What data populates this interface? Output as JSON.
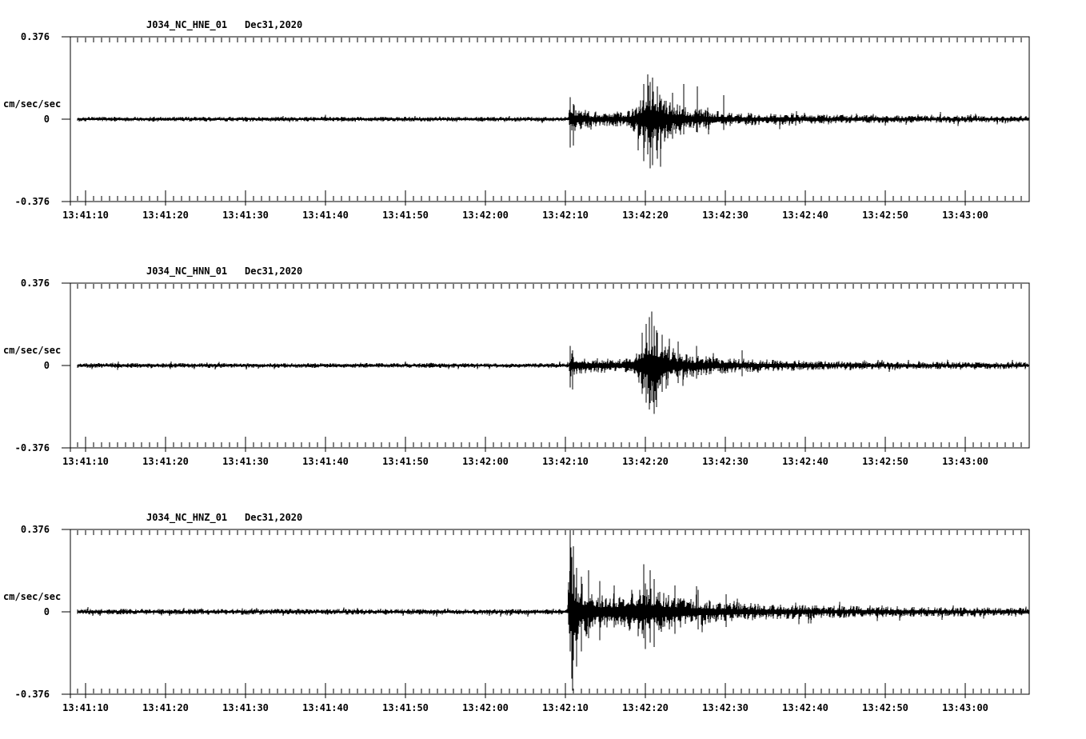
{
  "page": {
    "background_color": "#ffffff",
    "trace_color": "#000000"
  },
  "chart_data": {
    "type": "line",
    "subtype": "seismogram",
    "station": "J034",
    "network": "NC",
    "date_label": "Dec31,2020",
    "ylabel": "cm/sec/sec",
    "ylim": [
      -0.376,
      0.376
    ],
    "y_tick_labels": [
      "0.376",
      "0",
      "-0.376"
    ],
    "x_tick_labels": [
      "13:41:10",
      "13:41:20",
      "13:41:30",
      "13:41:40",
      "13:41:50",
      "13:42:00",
      "13:42:10",
      "13:42:20",
      "13:42:30",
      "13:42:40",
      "13:42:50",
      "13:43:00"
    ],
    "x_tick_interval_seconds": 10,
    "event_onset_label": "13:42:10",
    "panels": [
      {
        "title": "J034_NC_HNE_01",
        "date_label": "Dec31,2020",
        "channel": "HNE",
        "seed": 101,
        "envelope": [
          [
            0,
            0.011
          ],
          [
            62.3,
            0.011
          ],
          [
            62.45,
            0.085
          ],
          [
            63.2,
            0.058
          ],
          [
            64.5,
            0.042
          ],
          [
            66,
            0.034
          ],
          [
            69,
            0.036
          ],
          [
            70.3,
            0.05
          ],
          [
            71,
            0.08
          ],
          [
            71.8,
            0.13
          ],
          [
            72.4,
            0.175
          ],
          [
            73.2,
            0.155
          ],
          [
            74,
            0.115
          ],
          [
            75,
            0.08
          ],
          [
            76.5,
            0.06
          ],
          [
            78,
            0.05
          ],
          [
            80,
            0.04
          ],
          [
            83,
            0.032
          ],
          [
            86,
            0.028
          ],
          [
            90,
            0.025
          ],
          [
            95,
            0.021
          ],
          [
            100,
            0.019
          ],
          [
            108,
            0.017
          ],
          [
            120,
            0.016
          ]
        ],
        "spikes": [
          [
            62.5,
            0.1,
            0.13
          ],
          [
            62.9,
            0.07,
            0.12
          ],
          [
            71.7,
            0.16,
            0.12
          ],
          [
            72.2,
            0.205,
            0.16
          ],
          [
            72.5,
            0.17,
            0.225
          ],
          [
            72.8,
            0.19,
            0.21
          ],
          [
            73.4,
            0.15,
            0.18
          ],
          [
            75.3,
            0.12,
            0.09
          ],
          [
            76.7,
            0.16,
            0.07
          ],
          [
            78.4,
            0.15,
            0.06
          ],
          [
            81.7,
            0.11,
            0.05
          ]
        ]
      },
      {
        "title": "J034_NC_HNN_01",
        "date_label": "Dec31,2020",
        "channel": "HNN",
        "seed": 202,
        "envelope": [
          [
            0,
            0.011
          ],
          [
            62.3,
            0.011
          ],
          [
            62.45,
            0.07
          ],
          [
            63.2,
            0.05
          ],
          [
            64.5,
            0.038
          ],
          [
            66,
            0.033
          ],
          [
            69,
            0.035
          ],
          [
            70.3,
            0.05
          ],
          [
            71,
            0.09
          ],
          [
            71.8,
            0.15
          ],
          [
            72.6,
            0.19
          ],
          [
            73.4,
            0.165
          ],
          [
            74.2,
            0.12
          ],
          [
            75.2,
            0.085
          ],
          [
            76.5,
            0.065
          ],
          [
            78,
            0.05
          ],
          [
            80,
            0.042
          ],
          [
            83,
            0.033
          ],
          [
            86,
            0.028
          ],
          [
            90,
            0.025
          ],
          [
            95,
            0.021
          ],
          [
            100,
            0.019
          ],
          [
            108,
            0.017
          ],
          [
            120,
            0.016
          ]
        ],
        "spikes": [
          [
            62.5,
            0.09,
            0.1
          ],
          [
            62.8,
            0.07,
            0.11
          ],
          [
            71.5,
            0.15,
            0.13
          ],
          [
            72.0,
            0.19,
            0.17
          ],
          [
            72.4,
            0.22,
            0.2
          ],
          [
            72.7,
            0.247,
            0.16
          ],
          [
            73.0,
            0.18,
            0.22
          ],
          [
            73.3,
            0.16,
            0.19
          ],
          [
            74.0,
            0.14,
            0.12
          ],
          [
            76.0,
            0.11,
            0.08
          ],
          [
            78.3,
            0.09,
            0.06
          ],
          [
            84.0,
            0.07,
            0.05
          ]
        ]
      },
      {
        "title": "J034_NC_HNZ_01",
        "date_label": "Dec31,2020",
        "channel": "HNZ",
        "seed": 303,
        "envelope": [
          [
            0,
            0.013
          ],
          [
            62.2,
            0.013
          ],
          [
            62.35,
            0.28
          ],
          [
            62.7,
            0.32
          ],
          [
            63.1,
            0.19
          ],
          [
            63.8,
            0.14
          ],
          [
            65,
            0.1
          ],
          [
            66,
            0.085
          ],
          [
            68,
            0.078
          ],
          [
            69.5,
            0.085
          ],
          [
            70.6,
            0.11
          ],
          [
            71.5,
            0.1
          ],
          [
            72.3,
            0.115
          ],
          [
            73.2,
            0.1
          ],
          [
            74.2,
            0.09
          ],
          [
            76,
            0.075
          ],
          [
            78,
            0.062
          ],
          [
            80,
            0.055
          ],
          [
            83,
            0.045
          ],
          [
            86,
            0.038
          ],
          [
            90,
            0.033
          ],
          [
            95,
            0.029
          ],
          [
            100,
            0.026
          ],
          [
            105,
            0.023
          ],
          [
            110,
            0.021
          ],
          [
            120,
            0.019
          ]
        ],
        "spikes": [
          [
            62.45,
            0.376,
            0.18
          ],
          [
            62.65,
            0.25,
            0.305
          ],
          [
            62.9,
            0.3,
            0.22
          ],
          [
            63.3,
            0.2,
            0.25
          ],
          [
            63.9,
            0.16,
            0.18
          ],
          [
            64.8,
            0.19,
            0.12
          ],
          [
            66.2,
            0.14,
            0.13
          ],
          [
            71.7,
            0.217,
            0.12
          ],
          [
            71.9,
            0.13,
            0.17
          ],
          [
            72.5,
            0.19,
            0.14
          ],
          [
            73.0,
            0.15,
            0.16
          ],
          [
            75.6,
            0.12,
            0.1
          ],
          [
            78.5,
            0.1,
            0.08
          ],
          [
            82,
            0.08,
            0.07
          ]
        ]
      }
    ]
  }
}
